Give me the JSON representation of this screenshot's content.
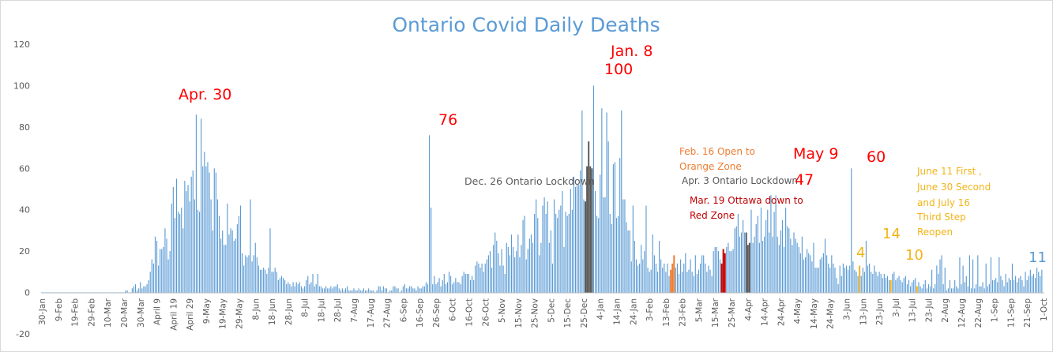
{
  "chart_data": {
    "type": "bar",
    "title": "Ontario Covid Daily Deaths",
    "xlabel": "",
    "ylabel": "",
    "ylim": [
      -20,
      120
    ],
    "y_ticks": [
      -20,
      0,
      20,
      40,
      60,
      80,
      100,
      120
    ],
    "grid": false,
    "start_date": "2020-01-30",
    "end_date": "2021-10-01",
    "x_tick_labels": [
      "30-Jan",
      "9-Feb",
      "19-Feb",
      "29-Feb",
      "10-Mar",
      "20-Mar",
      "30-Mar",
      "April 9",
      "April 19",
      "April 29",
      "9-May",
      "19-May",
      "29-May",
      "8-Jun",
      "18-Jun",
      "28-Jun",
      "8-Jul",
      "18-Jul",
      "28-Jul",
      "7-Aug",
      "17-Aug",
      "27-Aug",
      "6-Sep",
      "16-Sep",
      "26-Sep",
      "6-Oct",
      "16-Oct",
      "26-Oct",
      "5-Nov",
      "15-Nov",
      "25-Nov",
      "5-Dec",
      "15-Dec",
      "25-Dec",
      "4-Jan",
      "14-Jan",
      "24-Jan",
      "3-Feb",
      "13-Feb",
      "23-Feb",
      "5-Mar",
      "15-Mar",
      "25-Mar",
      "4-Apr",
      "14-Apr",
      "24-Apr",
      "4-May",
      "14-May",
      "24-May",
      "3-Jun",
      "13-Jun",
      "23-Jun",
      "3-Jul",
      "13-Jul",
      "23-Jul",
      "2-Aug",
      "12-Aug",
      "22-Aug",
      "1-Sep",
      "11-Sep",
      "21-Sep",
      "1-Oct"
    ],
    "series": [
      {
        "name": "Daily Deaths",
        "color": "#5b9bd5",
        "values": [
          0,
          0,
          0,
          0,
          0,
          0,
          0,
          0,
          0,
          0,
          0,
          0,
          0,
          0,
          0,
          0,
          0,
          0,
          0,
          0,
          0,
          0,
          0,
          0,
          0,
          0,
          0,
          0,
          0,
          0,
          0,
          0,
          0,
          0,
          0,
          0,
          0,
          0,
          0,
          0,
          0,
          0,
          0,
          0,
          0,
          0,
          0,
          0,
          0,
          0,
          0,
          1,
          1,
          0,
          0,
          2,
          3,
          4,
          1,
          2,
          5,
          2,
          3,
          3,
          4,
          6,
          10,
          16,
          14,
          27,
          25,
          13,
          21,
          21,
          22,
          31,
          26,
          16,
          20,
          43,
          51,
          36,
          55,
          39,
          38,
          41,
          31,
          54,
          49,
          52,
          44,
          56,
          59,
          45,
          86,
          40,
          39,
          84,
          61,
          68,
          61,
          63,
          58,
          45,
          30,
          60,
          58,
          45,
          37,
          26,
          30,
          23,
          23,
          43,
          28,
          31,
          30,
          25,
          26,
          33,
          37,
          42,
          19,
          13,
          18,
          17,
          18,
          45,
          15,
          18,
          24,
          17,
          13,
          11,
          11,
          12,
          11,
          9,
          12,
          31,
          10,
          10,
          12,
          10,
          6,
          7,
          8,
          7,
          6,
          4,
          5,
          4,
          3,
          5,
          3,
          5,
          4,
          5,
          3,
          2,
          3,
          6,
          8,
          4,
          5,
          9,
          3,
          4,
          9,
          3,
          3,
          2,
          2,
          3,
          2,
          2,
          3,
          2,
          3,
          3,
          4,
          2,
          1,
          2,
          1,
          2,
          3,
          1,
          1,
          1,
          2,
          1,
          1,
          2,
          1,
          1,
          2,
          1,
          1,
          2,
          1,
          1,
          1,
          0,
          1,
          3,
          3,
          1,
          3,
          2,
          2,
          0,
          1,
          1,
          3,
          3,
          2,
          2,
          0,
          1,
          3,
          4,
          2,
          2,
          3,
          3,
          2,
          2,
          1,
          3,
          2,
          2,
          3,
          3,
          5,
          4,
          76,
          41,
          4,
          8,
          4,
          5,
          7,
          3,
          6,
          9,
          4,
          5,
          10,
          8,
          4,
          5,
          7,
          5,
          5,
          4,
          8,
          10,
          9,
          9,
          9,
          6,
          8,
          6,
          13,
          15,
          14,
          12,
          14,
          10,
          14,
          16,
          18,
          20,
          12,
          23,
          29,
          25,
          19,
          13,
          21,
          13,
          9,
          24,
          22,
          18,
          28,
          22,
          17,
          20,
          28,
          17,
          23,
          35,
          37,
          16,
          21,
          26,
          28,
          24,
          38,
          45,
          36,
          18,
          24,
          42,
          46,
          38,
          44,
          24,
          30,
          14,
          45,
          38,
          36,
          40,
          42,
          49,
          22,
          39,
          37,
          38,
          50,
          40,
          56,
          51,
          52,
          52,
          59,
          88,
          45,
          44,
          61,
          73,
          61,
          60,
          100,
          49,
          37,
          36,
          57,
          89,
          46,
          46,
          87,
          73,
          38,
          33,
          62,
          63,
          36,
          37,
          65,
          88,
          45,
          45,
          34,
          30,
          30,
          15,
          42,
          25,
          16,
          13,
          14,
          23,
          16,
          20,
          42,
          12,
          10,
          11,
          28,
          18,
          14,
          10,
          25,
          16,
          12,
          14,
          10,
          14,
          8,
          11,
          14,
          18,
          12,
          14,
          9,
          16,
          10,
          14,
          19,
          10,
          11,
          16,
          10,
          8,
          18,
          9,
          11,
          14,
          18,
          18,
          14,
          10,
          13,
          11,
          8,
          20,
          22,
          22,
          20,
          16,
          14,
          21,
          19,
          22,
          24,
          20,
          20,
          21,
          31,
          32,
          38,
          27,
          29,
          35,
          29,
          29,
          23,
          24,
          40,
          24,
          27,
          33,
          37,
          24,
          41,
          25,
          27,
          35,
          40,
          29,
          47,
          27,
          39,
          47,
          27,
          23,
          30,
          35,
          22,
          41,
          32,
          31,
          26,
          23,
          29,
          26,
          24,
          22,
          19,
          27,
          16,
          17,
          21,
          19,
          18,
          15,
          24,
          12,
          12,
          12,
          16,
          17,
          19,
          26,
          18,
          14,
          12,
          18,
          14,
          12,
          7,
          4,
          13,
          8,
          14,
          12,
          13,
          11,
          13,
          60,
          15,
          11,
          10,
          8,
          13,
          8,
          12,
          10,
          25,
          13,
          14,
          10,
          9,
          13,
          10,
          8,
          10,
          9,
          7,
          9,
          7,
          8,
          6,
          6,
          9,
          10,
          6,
          7,
          8,
          6,
          5,
          7,
          8,
          4,
          6,
          3,
          5,
          6,
          7,
          3,
          5,
          3,
          2,
          4,
          6,
          2,
          4,
          3,
          11,
          2,
          4,
          13,
          9,
          16,
          18,
          4,
          12,
          1,
          2,
          6,
          2,
          2,
          6,
          3,
          2,
          17,
          4,
          13,
          5,
          8,
          3,
          18,
          2,
          16,
          2,
          4,
          18,
          3,
          3,
          5,
          2,
          14,
          3,
          4,
          17,
          6,
          6,
          7,
          5,
          17,
          8,
          6,
          3,
          9,
          5,
          7,
          6,
          14,
          6,
          8,
          5,
          7,
          8,
          6,
          3,
          10,
          6,
          8,
          11,
          8,
          9,
          7,
          12,
          10,
          8,
          11
        ]
      }
    ],
    "highlights": [
      {
        "date": "2020-12-26",
        "color": "#595959",
        "span": 5
      },
      {
        "date": "2021-02-16",
        "color": "#ed7d31",
        "span": 3
      },
      {
        "date": "2021-03-19",
        "color": "#c00000",
        "span": 3
      },
      {
        "date": "2021-04-03",
        "color": "#595959",
        "span": 3
      },
      {
        "date": "2021-06-11",
        "color": "#f2b418",
        "span": 1
      },
      {
        "date": "2021-06-30",
        "color": "#f2b418",
        "span": 1
      },
      {
        "date": "2021-07-16",
        "color": "#f2b418",
        "span": 1
      }
    ],
    "annotations": {
      "apr30": "Apr. 30",
      "oct_peak": "76",
      "jan8": "Jan. 8",
      "jan_peak": "100",
      "dec26": "Dec. 26 Ontario Lockdown",
      "feb16_line1": "Feb. 16 Open to",
      "feb16_line2": "Orange Zone",
      "apr3": "Apr. 3 Ontario Lockdown",
      "mar19_line1": "Mar. 19 Ottawa down to",
      "mar19_line2": "Red Zone",
      "may9": "May 9",
      "may_peak": "47",
      "jun_peak": "60",
      "jun_low": "4",
      "jul_val": "14",
      "jul_low": "10",
      "reopen_line1": "June 11 First ,",
      "reopen_line2": "June 30 Second",
      "reopen_line3": "and July 16",
      "reopen_line4": "Third Step",
      "reopen_line5": "Reopen",
      "last_val": "11"
    },
    "colors": {
      "title": "#5b9bd5",
      "axis_text": "#595959",
      "red": "#ff0000",
      "orange": "#ed7d31",
      "darkred": "#c00000",
      "gray": "#595959",
      "gold": "#f2b418",
      "blue": "#5b9bd5"
    }
  }
}
